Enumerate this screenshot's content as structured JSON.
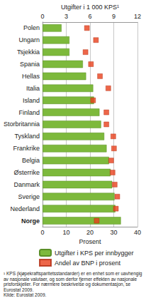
{
  "chart_data": {
    "type": "bar",
    "orientation": "horizontal",
    "ylabel": "Utgifter i 1 000 KPS¹",
    "y2label": "Prosent",
    "categories": [
      "Polen",
      "Ungarn",
      "Tsjekkia",
      "Spania",
      "Hellas",
      "Italia",
      "Island",
      "Finland",
      "Storbritannia",
      "Tyskland",
      "Frankrike",
      "Belgia",
      "Østerrike",
      "Danmark",
      "Sverige",
      "Nederland",
      "Norge"
    ],
    "series": [
      {
        "name": "Utgifter i KPS per innbygger",
        "type": "bar",
        "color": "#7db93c",
        "values": [
          2.4,
          3.4,
          3.4,
          5.1,
          5.5,
          6.4,
          6.5,
          7.2,
          7.4,
          7.8,
          8.1,
          8.4,
          8.6,
          8.8,
          9.1,
          9.2,
          9.9
        ]
      },
      {
        "name": "Andel av BNP i prosent",
        "type": "scatter",
        "marker": "square",
        "color": "#e8401c",
        "axis": "y2",
        "values": [
          18.7,
          22.5,
          18.1,
          20.4,
          24.2,
          27.7,
          21.3,
          26.9,
          26.9,
          29.8,
          30.1,
          28.9,
          29.5,
          30.4,
          31.5,
          30.9,
          22.8
        ]
      }
    ],
    "ylim": [
      0,
      12
    ],
    "yticks": [
      0,
      3,
      6,
      9,
      12
    ],
    "y2lim": [
      0,
      40
    ],
    "y2ticks": [
      0,
      10,
      20,
      30,
      40
    ],
    "grid": true,
    "legend": "bottom",
    "footnote": "¹ KPS (kjøpekraftsparitetsstandarder) er en enhet som er uavhengig av nasjonale valutaer, og som derfor fjerner effekten av nasjonale prisforskjeller. For nærmere beskrivelse og dokumentasjon, se Eurostat 2009.",
    "source": "Kilde: Eurostat 2009."
  }
}
